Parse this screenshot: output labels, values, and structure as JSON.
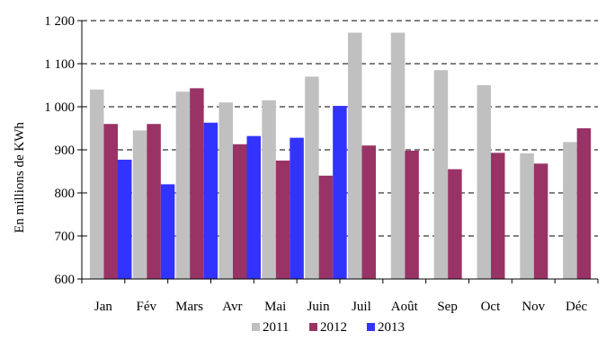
{
  "chart_data": {
    "type": "bar",
    "title": "",
    "xlabel": "",
    "ylabel": "En millions de KWh",
    "ylim": [
      600,
      1200
    ],
    "yticks": [
      "600",
      "700",
      "800",
      "900",
      "1 000",
      "1 100",
      "1 200"
    ],
    "yticks_values": [
      600,
      700,
      800,
      900,
      1000,
      1100,
      1200
    ],
    "grid": "horizontal dashed",
    "legend_position": "bottom",
    "categories": [
      "Jan",
      "Fév",
      "Mars",
      "Avr",
      "Mai",
      "Juin",
      "Juil",
      "Août",
      "Sep",
      "Oct",
      "Nov",
      "Déc"
    ],
    "series": [
      {
        "name": "2011",
        "color": "#c0c0c0",
        "values": [
          1040,
          945,
          1035,
          1010,
          1015,
          1070,
          1172,
          1172,
          1085,
          1050,
          892,
          918
        ]
      },
      {
        "name": "2012",
        "color": "#993366",
        "values": [
          960,
          960,
          1043,
          913,
          875,
          840,
          910,
          898,
          855,
          893,
          868,
          950
        ]
      },
      {
        "name": "2013",
        "color": "#3333ff",
        "values": [
          877,
          820,
          963,
          932,
          928,
          1002,
          null,
          null,
          null,
          null,
          null,
          null
        ]
      }
    ]
  }
}
